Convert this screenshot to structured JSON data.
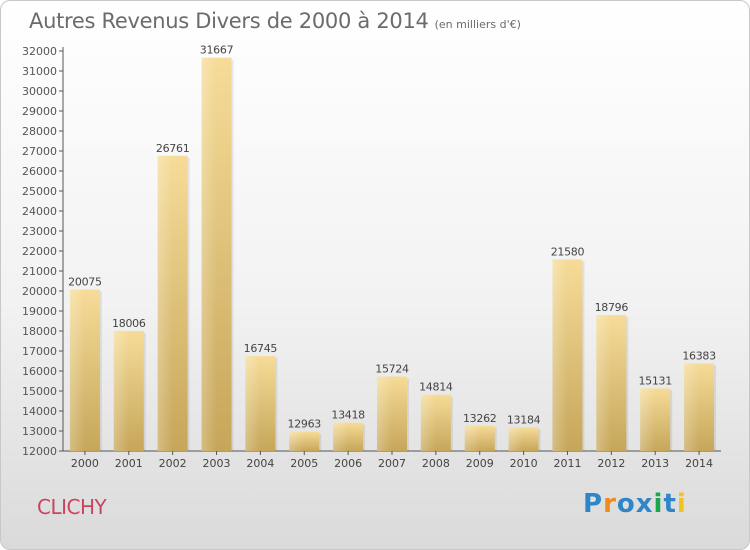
{
  "chart_data": {
    "type": "bar",
    "title": "Autres Revenus Divers de 2000 à 2014",
    "subtitle": "(en milliers d'€)",
    "categories": [
      "2000",
      "2001",
      "2002",
      "2003",
      "2004",
      "2005",
      "2006",
      "2007",
      "2008",
      "2009",
      "2010",
      "2011",
      "2012",
      "2013",
      "2014"
    ],
    "values": [
      20075,
      18006,
      26761,
      31667,
      16745,
      12963,
      13418,
      15724,
      14814,
      13262,
      13184,
      21580,
      18796,
      15131,
      16383
    ],
    "ylim": [
      12000,
      32000
    ],
    "yticks": [
      "12000",
      "13000",
      "14000",
      "15000",
      "16000",
      "17000",
      "18000",
      "19000",
      "20000",
      "21000",
      "22000",
      "23000",
      "24000",
      "25000",
      "26000",
      "27000",
      "28000",
      "29000",
      "30000",
      "31000",
      "32000"
    ],
    "grid": false,
    "bar_color": "#d6b86a"
  },
  "footer": {
    "city": "CLICHY",
    "logo": [
      "P",
      "r",
      "o",
      "x",
      "i",
      "t",
      "i"
    ],
    "logo_colors": [
      "#2e86c9",
      "#f08a1e",
      "#2e86c9",
      "#2e86c9",
      "#1aa64a",
      "#2e86c9",
      "#f0c31e"
    ]
  }
}
